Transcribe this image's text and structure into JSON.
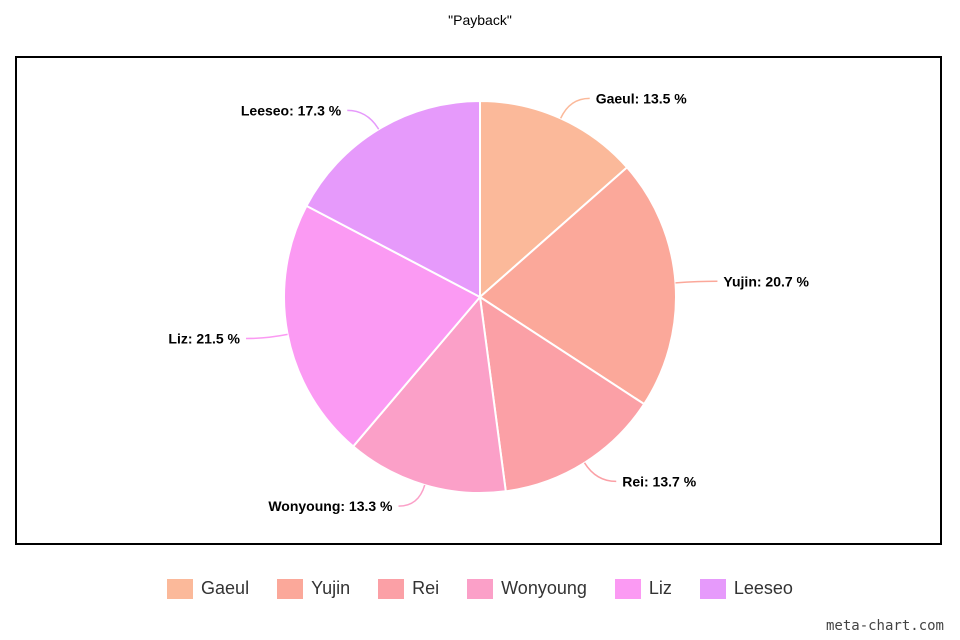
{
  "chart_data": {
    "type": "pie",
    "title": "\"Payback\"",
    "slices": [
      {
        "label": "Gaeul",
        "value": 13.5,
        "display": "Gaeul: 13.5 %",
        "color": "#fbb99a"
      },
      {
        "label": "Yujin",
        "value": 20.7,
        "display": "Yujin: 20.7 %",
        "color": "#fba89a"
      },
      {
        "label": "Rei",
        "value": 13.7,
        "display": "Rei: 13.7 %",
        "color": "#fba0a6"
      },
      {
        "label": "Wonyoung",
        "value": 13.3,
        "display": "Wonyoung: 13.3 %",
        "color": "#fba0c8"
      },
      {
        "label": "Liz",
        "value": 21.5,
        "display": "Liz: 21.5 %",
        "color": "#fb9af3"
      },
      {
        "label": "Leeseo",
        "value": 17.3,
        "display": "Leeseo: 17.3 %",
        "color": "#e69afb"
      }
    ],
    "legend_position": "bottom"
  },
  "watermark": "meta-chart.com"
}
